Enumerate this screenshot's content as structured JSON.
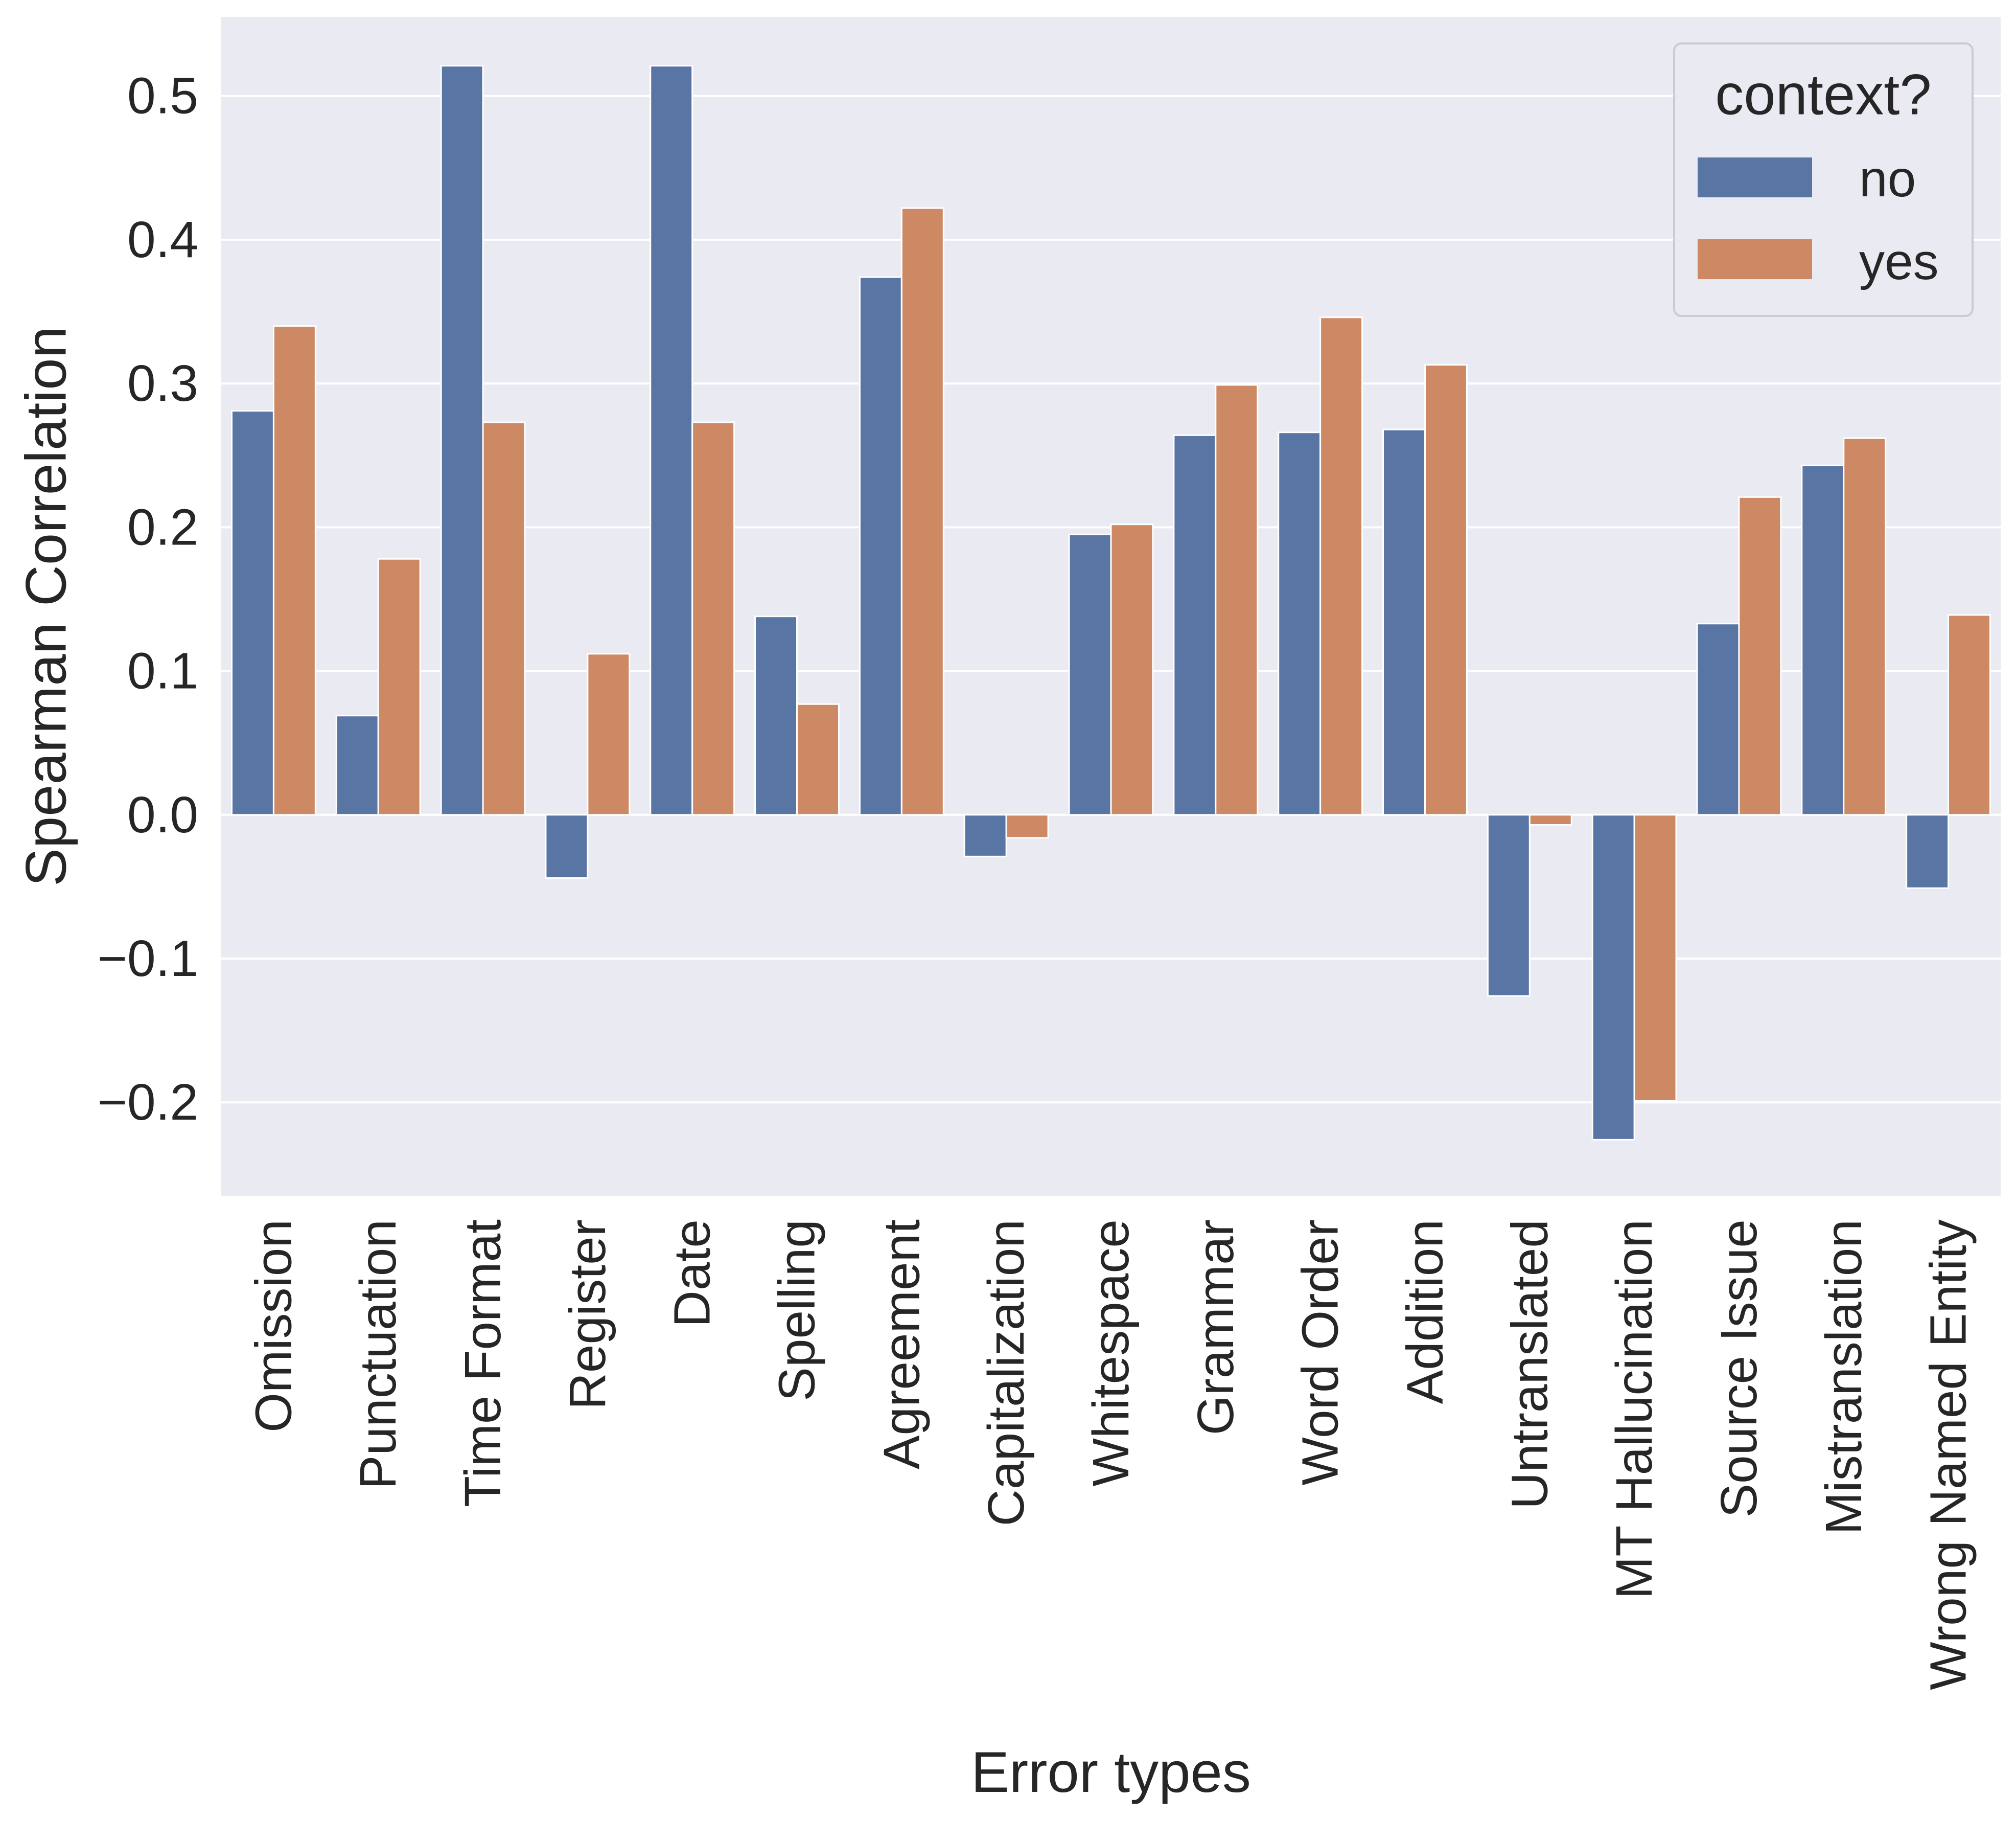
{
  "chart_data": {
    "type": "bar",
    "xlabel": "Error types",
    "ylabel": "Spearman Correlation",
    "ylim": [
      -0.265,
      0.555
    ],
    "yticks": [
      -0.2,
      -0.1,
      0.0,
      0.1,
      0.2,
      0.3,
      0.4,
      0.5
    ],
    "ytick_labels": [
      "−0.2",
      "−0.1",
      "0.0",
      "0.1",
      "0.2",
      "0.3",
      "0.4",
      "0.5"
    ],
    "grid": true,
    "legend": {
      "title": "context?",
      "placement": "top-right"
    },
    "categories": [
      "Omission",
      "Punctuation",
      "Time Format",
      "Register",
      "Date",
      "Spelling",
      "Agreement",
      "Capitalization",
      "Whitespace",
      "Grammar",
      "Word Order",
      "Addition",
      "Untranslated",
      "MT Hallucination",
      "Source Issue",
      "Mistranslation",
      "Wrong Named Entity"
    ],
    "series": [
      {
        "name": "no",
        "color": "#5975a4",
        "values": [
          0.281,
          0.069,
          0.521,
          -0.044,
          0.521,
          0.138,
          0.374,
          -0.029,
          0.195,
          0.264,
          0.266,
          0.268,
          -0.126,
          -0.226,
          0.133,
          0.243,
          -0.051
        ]
      },
      {
        "name": "yes",
        "color": "#cc8963",
        "values": [
          0.34,
          0.178,
          0.273,
          0.112,
          0.273,
          0.077,
          0.422,
          -0.016,
          0.202,
          0.299,
          0.346,
          0.313,
          -0.007,
          -0.199,
          0.221,
          0.262,
          0.139
        ]
      }
    ],
    "colors": {
      "plot_background": "#eaeaf2",
      "grid": "#ffffff",
      "text": "#262626"
    }
  }
}
